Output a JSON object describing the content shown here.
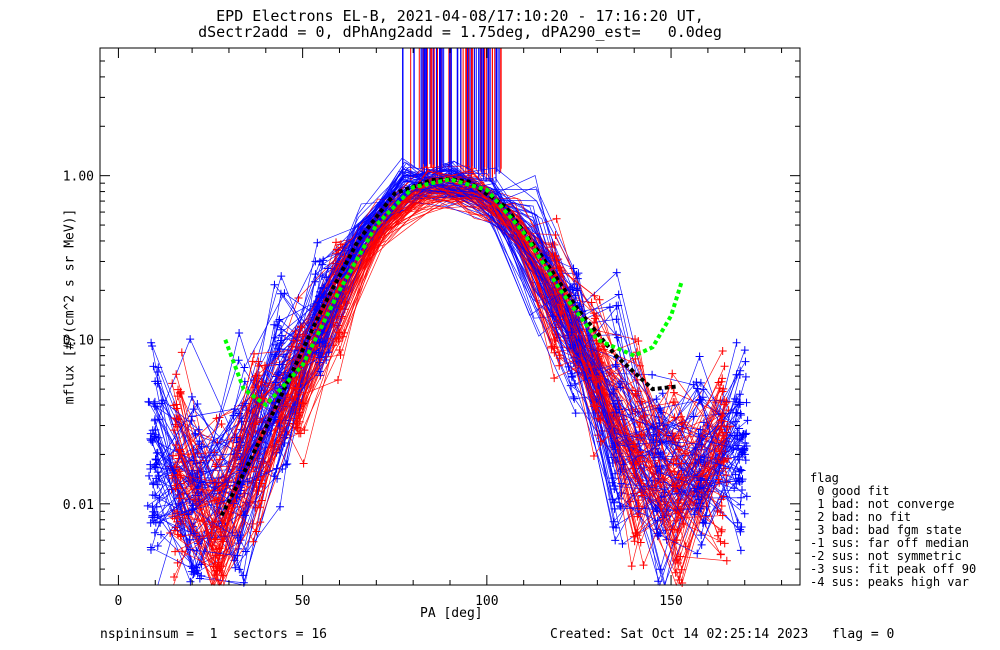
{
  "title_line1": "EPD Electrons EL-B, 2021-04-08/17:10:20 - 17:16:20 UT,",
  "title_line2": "dSectr2add = 0, dPhAng2add = 1.75deg, dPA290_est=   0.0deg",
  "footer_left": "nspininsum =  1  sectors = 16",
  "footer_right": "Created: Sat Oct 14 02:25:14 2023   flag = 0",
  "legend": {
    "title": "flag",
    "items": [
      " 0 good fit",
      " 1 bad: not converge",
      " 2 bad: no fit",
      " 3 bad: bad fgm state",
      "-1 sus: far off median",
      "-2 sus: not symmetric",
      "-3 sus: fit peak off 90",
      "-4 sus: peaks high var"
    ]
  },
  "colors": {
    "series_red": "#ff0000",
    "series_blue": "#0000ff",
    "fit_green": "#00ff00",
    "fit_black": "#000000"
  },
  "chart_data": {
    "type": "line",
    "xlabel": "PA [deg]",
    "ylabel": "mflux [#/(cm^2 s sr MeV)]",
    "x_ticks": [
      "0",
      "50",
      "100",
      "150"
    ],
    "y_ticks": [
      "0.01",
      "0.10",
      "1.00"
    ],
    "xlim": [
      -5,
      185
    ],
    "ylim": [
      0.0032,
      6.0
    ],
    "y_scale": "log",
    "marker": "+",
    "series_groups": [
      {
        "color": "red",
        "x": [
          16,
          27,
          38,
          49,
          60,
          72,
          84,
          96,
          108,
          119,
          130,
          141,
          152,
          164
        ],
        "y_typical": [
          0.014,
          0.008,
          0.022,
          0.06,
          0.18,
          0.5,
          0.82,
          0.82,
          0.5,
          0.18,
          0.06,
          0.022,
          0.012,
          0.025
        ]
      },
      {
        "color": "blue",
        "x": [
          10,
          21,
          33,
          44,
          55,
          66,
          78,
          90,
          101,
          113,
          124,
          135,
          147,
          158,
          169
        ],
        "y_typical": [
          0.02,
          0.012,
          0.016,
          0.045,
          0.14,
          0.42,
          0.85,
          0.92,
          0.75,
          0.32,
          0.1,
          0.03,
          0.014,
          0.016,
          0.025
        ]
      }
    ],
    "fit_green": {
      "x": [
        29,
        34,
        40,
        50,
        60,
        70,
        80,
        90,
        100,
        110,
        120,
        130,
        140,
        145,
        150,
        153
      ],
      "y": [
        0.1,
        0.05,
        0.04,
        0.07,
        0.2,
        0.5,
        0.85,
        0.95,
        0.82,
        0.45,
        0.2,
        0.1,
        0.08,
        0.09,
        0.14,
        0.23
      ]
    },
    "fit_black": {
      "x": [
        28,
        35,
        45,
        55,
        65,
        75,
        85,
        90,
        95,
        105,
        115,
        125,
        135,
        145,
        152
      ],
      "y": [
        0.0085,
        0.017,
        0.05,
        0.15,
        0.4,
        0.78,
        0.94,
        0.95,
        0.92,
        0.65,
        0.32,
        0.15,
        0.08,
        0.05,
        0.052
      ]
    },
    "vertical_lines_x_range": [
      77,
      104
    ]
  }
}
